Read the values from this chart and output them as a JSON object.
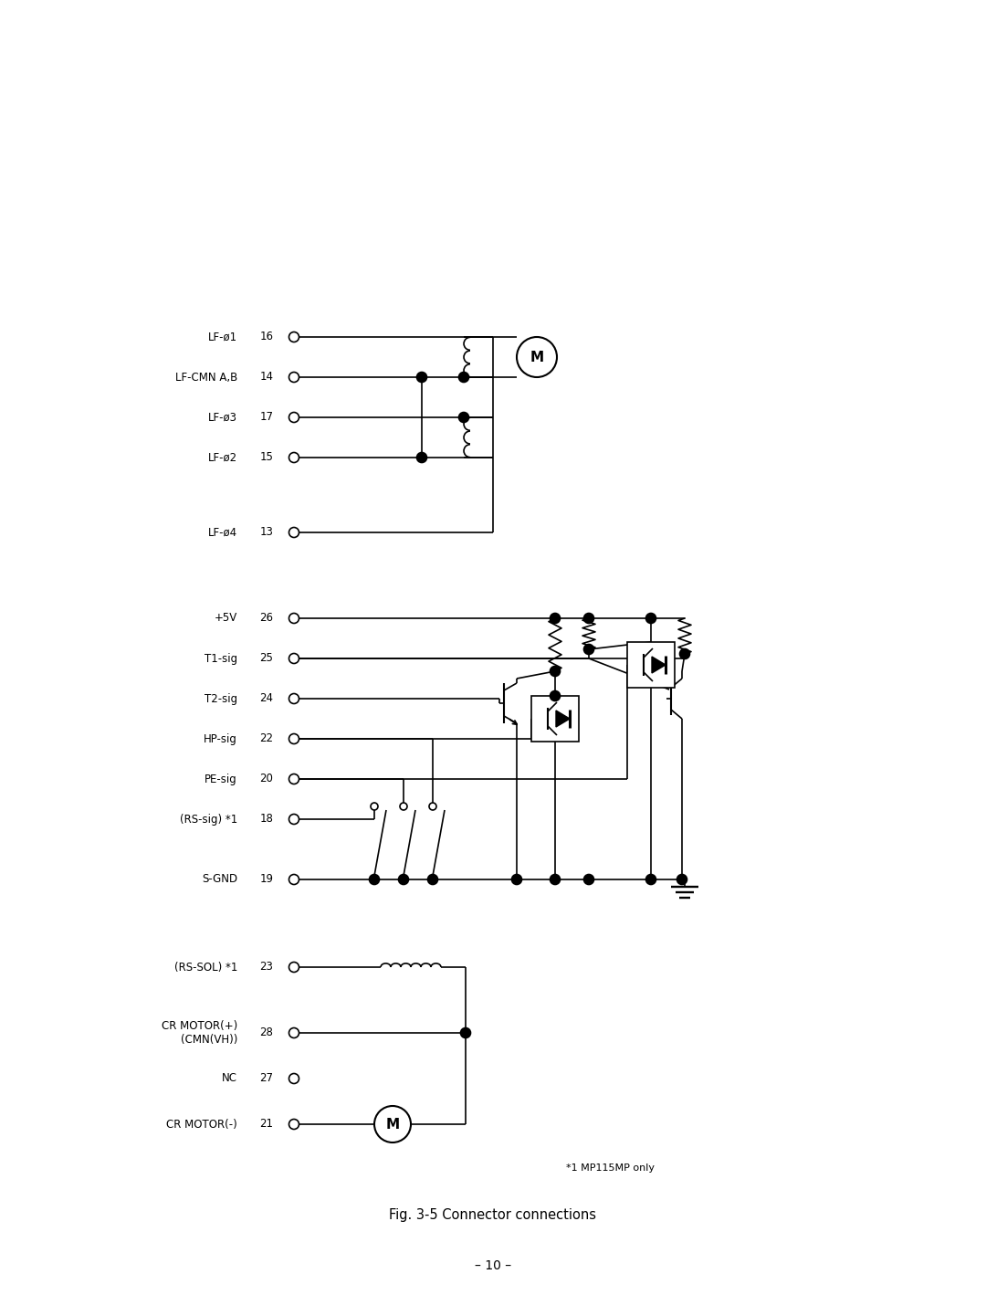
{
  "title": "Fig. 3-5 Connector connections",
  "page_number": "– 10 –",
  "footnote": "*1 MP115MP only",
  "background_color": "#ffffff",
  "line_color": "#000000",
  "fig_width": 10.8,
  "fig_height": 14.41,
  "dpi": 100
}
